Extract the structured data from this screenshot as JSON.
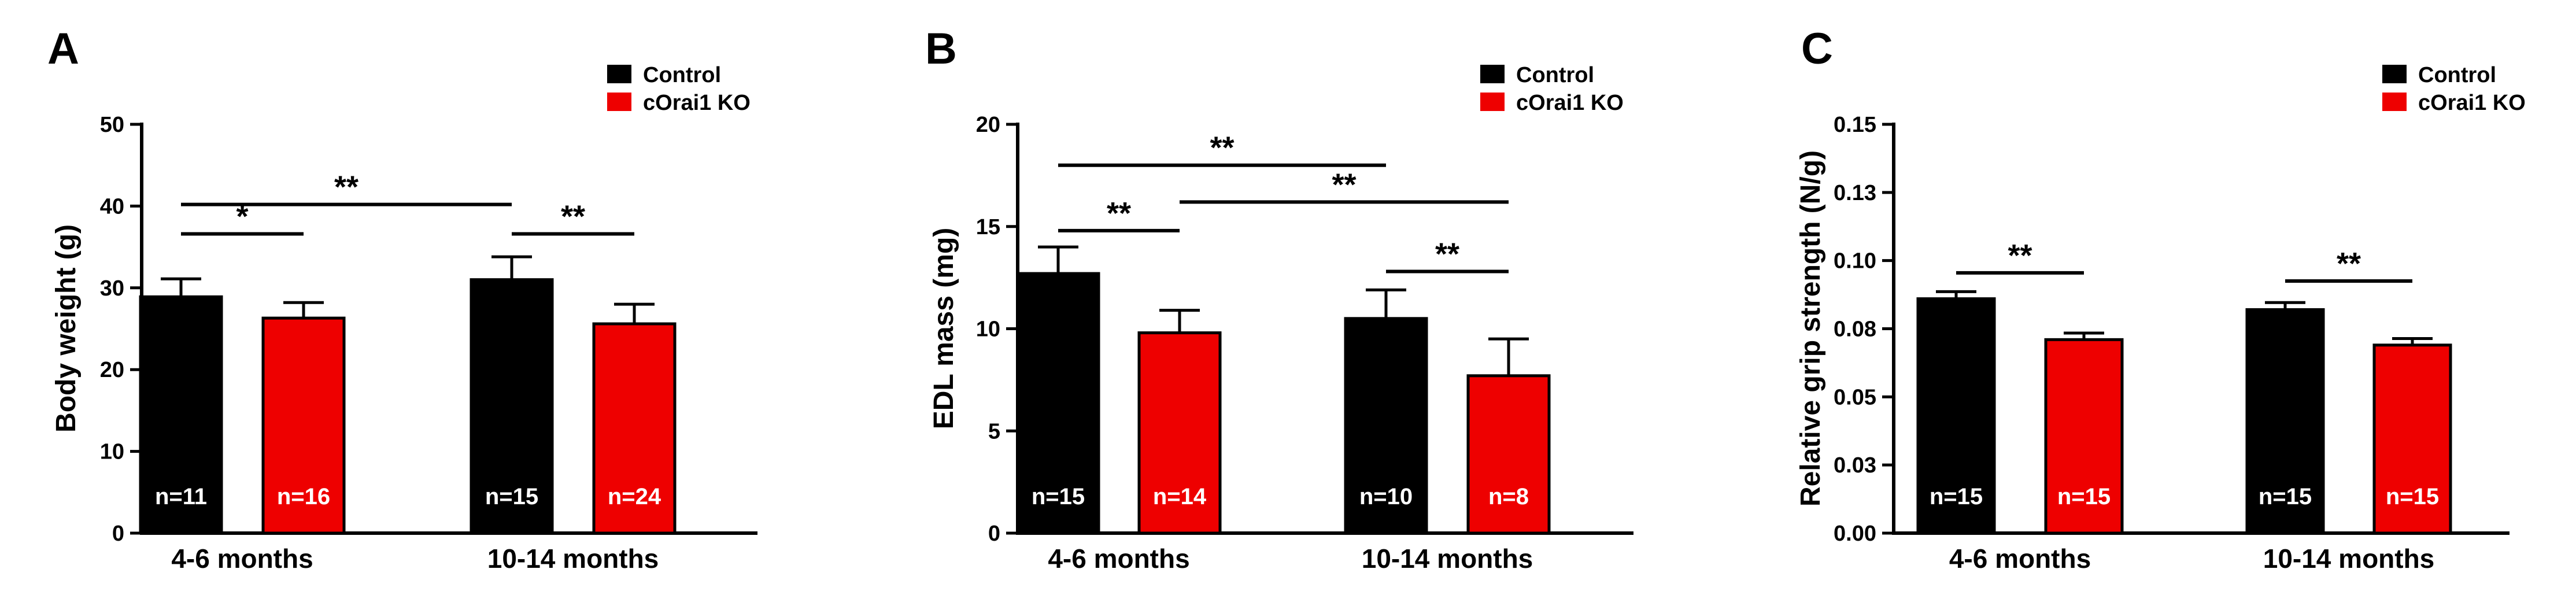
{
  "colors": {
    "control": "#000000",
    "ko": "#ee0000"
  },
  "legend": {
    "control": "Control",
    "ko": "cOrai1 KO"
  },
  "chart_data": [
    {
      "type": "bar",
      "panel": "A",
      "ylabel": "Body weight (g)",
      "ylim": [
        0,
        50
      ],
      "yticks": [
        0,
        10,
        20,
        30,
        40,
        50
      ],
      "ytick_labels": [
        "0",
        "10",
        "20",
        "30",
        "40",
        "50"
      ],
      "categories": [
        "4-6 months",
        "10-14 months"
      ],
      "series": [
        {
          "name": "Control",
          "values": [
            28.9,
            31.0
          ],
          "errors": [
            2.2,
            2.8
          ],
          "n": [
            "n=11",
            "n=15"
          ]
        },
        {
          "name": "cOrai1 KO",
          "values": [
            26.3,
            25.6
          ],
          "errors": [
            1.9,
            2.4
          ],
          "n": [
            "n=16",
            "n=24"
          ]
        }
      ],
      "significance": [
        {
          "from": [
            0,
            0
          ],
          "to": [
            1,
            0
          ],
          "y": 40.2,
          "label": "**"
        },
        {
          "from": [
            0,
            0
          ],
          "to": [
            0,
            1
          ],
          "y": 36.6,
          "label": "*"
        },
        {
          "from": [
            1,
            0
          ],
          "to": [
            1,
            1
          ],
          "y": 36.6,
          "label": "**"
        }
      ]
    },
    {
      "type": "bar",
      "panel": "B",
      "ylabel": "EDL mass (mg)",
      "ylim": [
        0,
        20
      ],
      "yticks": [
        0,
        5,
        10,
        15,
        20
      ],
      "ytick_labels": [
        "0",
        "5",
        "10",
        "15",
        "20"
      ],
      "categories": [
        "4-6 months",
        "10-14 months"
      ],
      "series": [
        {
          "name": "Control",
          "values": [
            12.7,
            10.5
          ],
          "errors": [
            1.3,
            1.4
          ],
          "n": [
            "n=15",
            "n=10"
          ]
        },
        {
          "name": "cOrai1 KO",
          "values": [
            9.8,
            7.7
          ],
          "errors": [
            1.1,
            1.8
          ],
          "n": [
            "n=14",
            "n=8"
          ]
        }
      ],
      "significance": [
        {
          "from": [
            0,
            0
          ],
          "to": [
            1,
            0
          ],
          "y": 18.0,
          "label": "**"
        },
        {
          "from": [
            0,
            1
          ],
          "to": [
            1,
            1
          ],
          "y": 16.2,
          "label": "**"
        },
        {
          "from": [
            0,
            0
          ],
          "to": [
            0,
            1
          ],
          "y": 14.8,
          "label": "**"
        },
        {
          "from": [
            1,
            0
          ],
          "to": [
            1,
            1
          ],
          "y": 12.8,
          "label": "**"
        }
      ]
    },
    {
      "type": "bar",
      "panel": "C",
      "ylabel": "Relative grip strength (N/g)",
      "ylim": [
        0,
        0.15
      ],
      "yticks": [
        0,
        0.025,
        0.05,
        0.075,
        0.1,
        0.125,
        0.15
      ],
      "ytick_labels": [
        "0.00",
        "0.03",
        "0.05",
        "0.08",
        "0.10",
        "0.13",
        "0.15"
      ],
      "categories": [
        "4-6 months",
        "10-14 months"
      ],
      "series": [
        {
          "name": "Control",
          "values": [
            0.086,
            0.082
          ],
          "errors": [
            0.0026,
            0.0026
          ],
          "n": [
            "n=15",
            "n=15"
          ]
        },
        {
          "name": "cOrai1 KO",
          "values": [
            0.071,
            0.069
          ],
          "errors": [
            0.0024,
            0.0024
          ],
          "n": [
            "n=15",
            "n=15"
          ]
        }
      ],
      "significance": [
        {
          "from": [
            0,
            0
          ],
          "to": [
            0,
            1
          ],
          "y": 0.0955,
          "label": "**"
        },
        {
          "from": [
            1,
            0
          ],
          "to": [
            1,
            1
          ],
          "y": 0.0925,
          "label": "**"
        }
      ]
    }
  ]
}
